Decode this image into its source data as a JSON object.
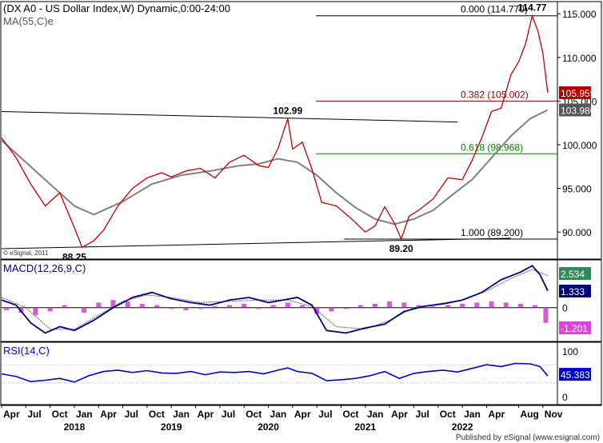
{
  "chart_data": {
    "type": "line",
    "title": "(DX A0 - US Dollar Index,W) Dynamic,0:00-24:00",
    "ma_label": "MA(55,C)e",
    "watermark": "© eSignal, 2011",
    "footer": "Published by eSignal (www.esignal.com)",
    "colors": {
      "price": "#c00000",
      "ma": "#808080",
      "macd": "#000080",
      "signal": "#606060",
      "histogram": "#cc33cc",
      "rsi": "#0000cc",
      "fib_green": "#008000",
      "fib_red": "#8b0000",
      "price_tag": "#b00000",
      "ma_tag": "#555555",
      "macd_tag": "#000080",
      "signal_tag": "#2e8b57",
      "hist_tag": "#dd44dd"
    },
    "price_panel": {
      "ylim": [
        87,
        116.3
      ],
      "yticks": [
        "115.000",
        "110.000",
        "105.000",
        "100.000",
        "95.000",
        "90.000"
      ],
      "ytick_values": [
        115,
        110,
        105,
        100,
        95,
        90
      ],
      "last_price": "105.959",
      "last_ma": "103.986",
      "fib_levels": [
        {
          "label": "0.000 (114.770)",
          "value": 114.77,
          "color": "black"
        },
        {
          "label": "0.382 (105.002)",
          "value": 105.002,
          "color": "red"
        },
        {
          "label": "0.618 (98.968)",
          "value": 98.968,
          "color": "green"
        },
        {
          "label": "1.000 (89.200)",
          "value": 89.2,
          "color": "black"
        }
      ],
      "annotations": [
        {
          "text": "114.77",
          "x": 2022.72,
          "y": 114.77
        },
        {
          "text": "102.99",
          "x": 2020.2,
          "y": 102.99
        },
        {
          "text": "88.25",
          "x": 2018.0,
          "y": 88.25
        },
        {
          "text": "89.20",
          "x": 2021.37,
          "y": 89.2
        }
      ],
      "trendlines": [
        {
          "x": [
            2017.25,
            2021.95
          ],
          "y": [
            103.8,
            102.6
          ]
        },
        {
          "x": [
            2017.25,
            2022.5
          ],
          "y": [
            88.1,
            89.3
          ]
        }
      ],
      "price": {
        "x": [
          2017.25,
          2017.4,
          2017.55,
          2017.7,
          2017.85,
          2018.0,
          2018.08,
          2018.2,
          2018.3,
          2018.45,
          2018.6,
          2018.75,
          2018.9,
          2019.0,
          2019.15,
          2019.3,
          2019.45,
          2019.6,
          2019.75,
          2019.9,
          2020.0,
          2020.1,
          2020.2,
          2020.25,
          2020.35,
          2020.45,
          2020.55,
          2020.7,
          2020.85,
          2021.0,
          2021.1,
          2021.2,
          2021.3,
          2021.37,
          2021.45,
          2021.55,
          2021.7,
          2021.85,
          2022.0,
          2022.1,
          2022.2,
          2022.3,
          2022.4,
          2022.5,
          2022.58,
          2022.65,
          2022.72,
          2022.78,
          2022.83,
          2022.88
        ],
        "y": [
          100.8,
          98.5,
          95.5,
          93.0,
          94.5,
          90.5,
          88.25,
          89.0,
          90.2,
          93.0,
          95.0,
          96.2,
          96.8,
          96.3,
          97.0,
          97.3,
          96.2,
          98.0,
          98.8,
          97.6,
          97.4,
          99.6,
          102.99,
          99.5,
          100.3,
          97.2,
          93.4,
          93.0,
          91.6,
          90.0,
          90.7,
          92.9,
          91.0,
          89.2,
          91.8,
          92.5,
          93.8,
          96.2,
          96.0,
          98.2,
          100.8,
          103.8,
          104.2,
          108.0,
          109.5,
          111.5,
          114.77,
          113.0,
          110.5,
          105.959
        ]
      },
      "ma55": {
        "x": [
          2017.25,
          2017.5,
          2017.75,
          2018.0,
          2018.2,
          2018.5,
          2018.8,
          2019.1,
          2019.4,
          2019.7,
          2019.9,
          2020.1,
          2020.3,
          2020.5,
          2020.7,
          2020.9,
          2021.1,
          2021.3,
          2021.5,
          2021.7,
          2021.9,
          2022.1,
          2022.3,
          2022.5,
          2022.7,
          2022.88
        ],
        "y": [
          100.5,
          98.0,
          95.5,
          93.0,
          92.0,
          93.5,
          95.5,
          96.5,
          97.0,
          97.6,
          97.8,
          98.4,
          98.0,
          96.5,
          94.5,
          92.8,
          91.5,
          90.9,
          91.5,
          92.5,
          94.3,
          96.0,
          98.5,
          101.0,
          103.0,
          103.986
        ]
      }
    },
    "macd_panel": {
      "label": "MACD(12,26,9,C)",
      "ylim": [
        -2.6,
        3.7
      ],
      "zero_tick": "0",
      "macd_value": "1.333",
      "signal_value": "2.534",
      "hist_value": "-1.201",
      "macd": {
        "x": [
          2017.25,
          2017.4,
          2017.55,
          2017.7,
          2017.85,
          2018.0,
          2018.2,
          2018.4,
          2018.6,
          2018.8,
          2019.0,
          2019.2,
          2019.4,
          2019.6,
          2019.8,
          2020.0,
          2020.15,
          2020.3,
          2020.45,
          2020.6,
          2020.8,
          2021.0,
          2021.2,
          2021.4,
          2021.6,
          2021.8,
          2022.0,
          2022.2,
          2022.4,
          2022.6,
          2022.72,
          2022.8,
          2022.88
        ],
        "y": [
          0.6,
          0.2,
          -1.2,
          -2.0,
          -1.5,
          -1.8,
          -1.0,
          0.0,
          0.8,
          1.2,
          0.7,
          0.4,
          0.2,
          0.6,
          0.8,
          0.4,
          0.6,
          0.8,
          0.2,
          -1.8,
          -2.0,
          -1.6,
          -1.3,
          -0.3,
          0.1,
          0.3,
          0.6,
          1.2,
          2.2,
          2.8,
          3.3,
          2.6,
          1.333
        ]
      },
      "signal": {
        "x": [
          2017.25,
          2017.5,
          2017.75,
          2018.0,
          2018.25,
          2018.5,
          2018.75,
          2019.0,
          2019.3,
          2019.6,
          2019.9,
          2020.2,
          2020.45,
          2020.7,
          2021.0,
          2021.25,
          2021.5,
          2021.75,
          2022.0,
          2022.25,
          2022.5,
          2022.72,
          2022.88
        ],
        "y": [
          0.8,
          0.0,
          -1.7,
          -1.7,
          -0.6,
          0.5,
          1.0,
          0.8,
          0.4,
          0.5,
          0.6,
          0.6,
          0.1,
          -1.5,
          -1.7,
          -1.0,
          0.0,
          0.3,
          0.6,
          1.3,
          2.3,
          3.0,
          2.534
        ]
      },
      "histogram": {
        "x": [
          2017.3,
          2017.45,
          2017.6,
          2017.75,
          2017.9,
          2018.1,
          2018.25,
          2018.4,
          2018.55,
          2018.7,
          2018.85,
          2019.0,
          2019.15,
          2019.3,
          2019.45,
          2019.6,
          2019.75,
          2019.9,
          2020.05,
          2020.2,
          2020.35,
          2020.5,
          2020.65,
          2020.8,
          2020.95,
          2021.1,
          2021.25,
          2021.4,
          2021.55,
          2021.7,
          2021.85,
          2022.0,
          2022.15,
          2022.3,
          2022.45,
          2022.6,
          2022.75,
          2022.86
        ],
        "y": [
          -0.2,
          -0.4,
          -0.6,
          -0.3,
          0.2,
          -0.4,
          0.4,
          0.6,
          0.5,
          0.3,
          0.2,
          -0.1,
          -0.2,
          -0.1,
          0.1,
          0.2,
          0.3,
          -0.1,
          0.2,
          0.4,
          0.2,
          -0.5,
          -0.3,
          -0.1,
          0.2,
          0.3,
          0.5,
          0.4,
          0.2,
          0.1,
          0.2,
          0.3,
          0.4,
          0.5,
          0.4,
          0.3,
          0.2,
          -1.201
        ]
      }
    },
    "rsi_panel": {
      "label": "RSI(14,C)",
      "ylim": [
        0,
        100
      ],
      "yticks": [
        "100",
        "50",
        "0"
      ],
      "ytick_values": [
        100,
        50,
        0
      ],
      "ref_lines": [
        70,
        30
      ],
      "value": "45.383",
      "x": [
        2017.25,
        2017.4,
        2017.55,
        2017.7,
        2017.85,
        2018.0,
        2018.15,
        2018.3,
        2018.45,
        2018.6,
        2018.75,
        2018.9,
        2019.05,
        2019.2,
        2019.35,
        2019.5,
        2019.65,
        2019.8,
        2019.95,
        2020.1,
        2020.2,
        2020.3,
        2020.45,
        2020.6,
        2020.75,
        2020.9,
        2021.05,
        2021.2,
        2021.35,
        2021.5,
        2021.65,
        2021.8,
        2021.95,
        2022.1,
        2022.25,
        2022.4,
        2022.55,
        2022.7,
        2022.8,
        2022.88
      ],
      "y": [
        50,
        44,
        33,
        36,
        40,
        32,
        46,
        55,
        58,
        53,
        57,
        52,
        51,
        55,
        48,
        54,
        53,
        55,
        50,
        58,
        63,
        55,
        51,
        35,
        37,
        40,
        46,
        55,
        40,
        51,
        55,
        58,
        54,
        62,
        70,
        66,
        73,
        72,
        66,
        45.383
      ]
    },
    "x_axis": {
      "xlim": [
        2017.25,
        2022.98
      ],
      "month_ticks": [
        {
          "label": "Apr",
          "x": 2017.25
        },
        {
          "label": "Jul",
          "x": 2017.5
        },
        {
          "label": "Oct",
          "x": 2017.75
        },
        {
          "label": "Jan",
          "x": 2018.0
        },
        {
          "label": "Apr",
          "x": 2018.25
        },
        {
          "label": "Jul",
          "x": 2018.5
        },
        {
          "label": "Oct",
          "x": 2018.75
        },
        {
          "label": "Jan",
          "x": 2019.0
        },
        {
          "label": "Apr",
          "x": 2019.25
        },
        {
          "label": "Jul",
          "x": 2019.5
        },
        {
          "label": "Oct",
          "x": 2019.75
        },
        {
          "label": "Jan",
          "x": 2020.0
        },
        {
          "label": "Apr",
          "x": 2020.25
        },
        {
          "label": "Jul",
          "x": 2020.5
        },
        {
          "label": "Oct",
          "x": 2020.75
        },
        {
          "label": "Jan",
          "x": 2021.0
        },
        {
          "label": "Apr",
          "x": 2021.25
        },
        {
          "label": "Jul",
          "x": 2021.5
        },
        {
          "label": "Oct",
          "x": 2021.75
        },
        {
          "label": "Jan",
          "x": 2022.0
        },
        {
          "label": "Apr",
          "x": 2022.25
        },
        {
          "label": "Aug",
          "x": 2022.58
        },
        {
          "label": "Nov",
          "x": 2022.83
        }
      ],
      "year_ticks": [
        {
          "label": "2018",
          "x": 2018.0
        },
        {
          "label": "2019",
          "x": 2019.0
        },
        {
          "label": "2020",
          "x": 2020.0
        },
        {
          "label": "2021",
          "x": 2021.0
        },
        {
          "label": "2022",
          "x": 2022.0
        }
      ]
    }
  }
}
